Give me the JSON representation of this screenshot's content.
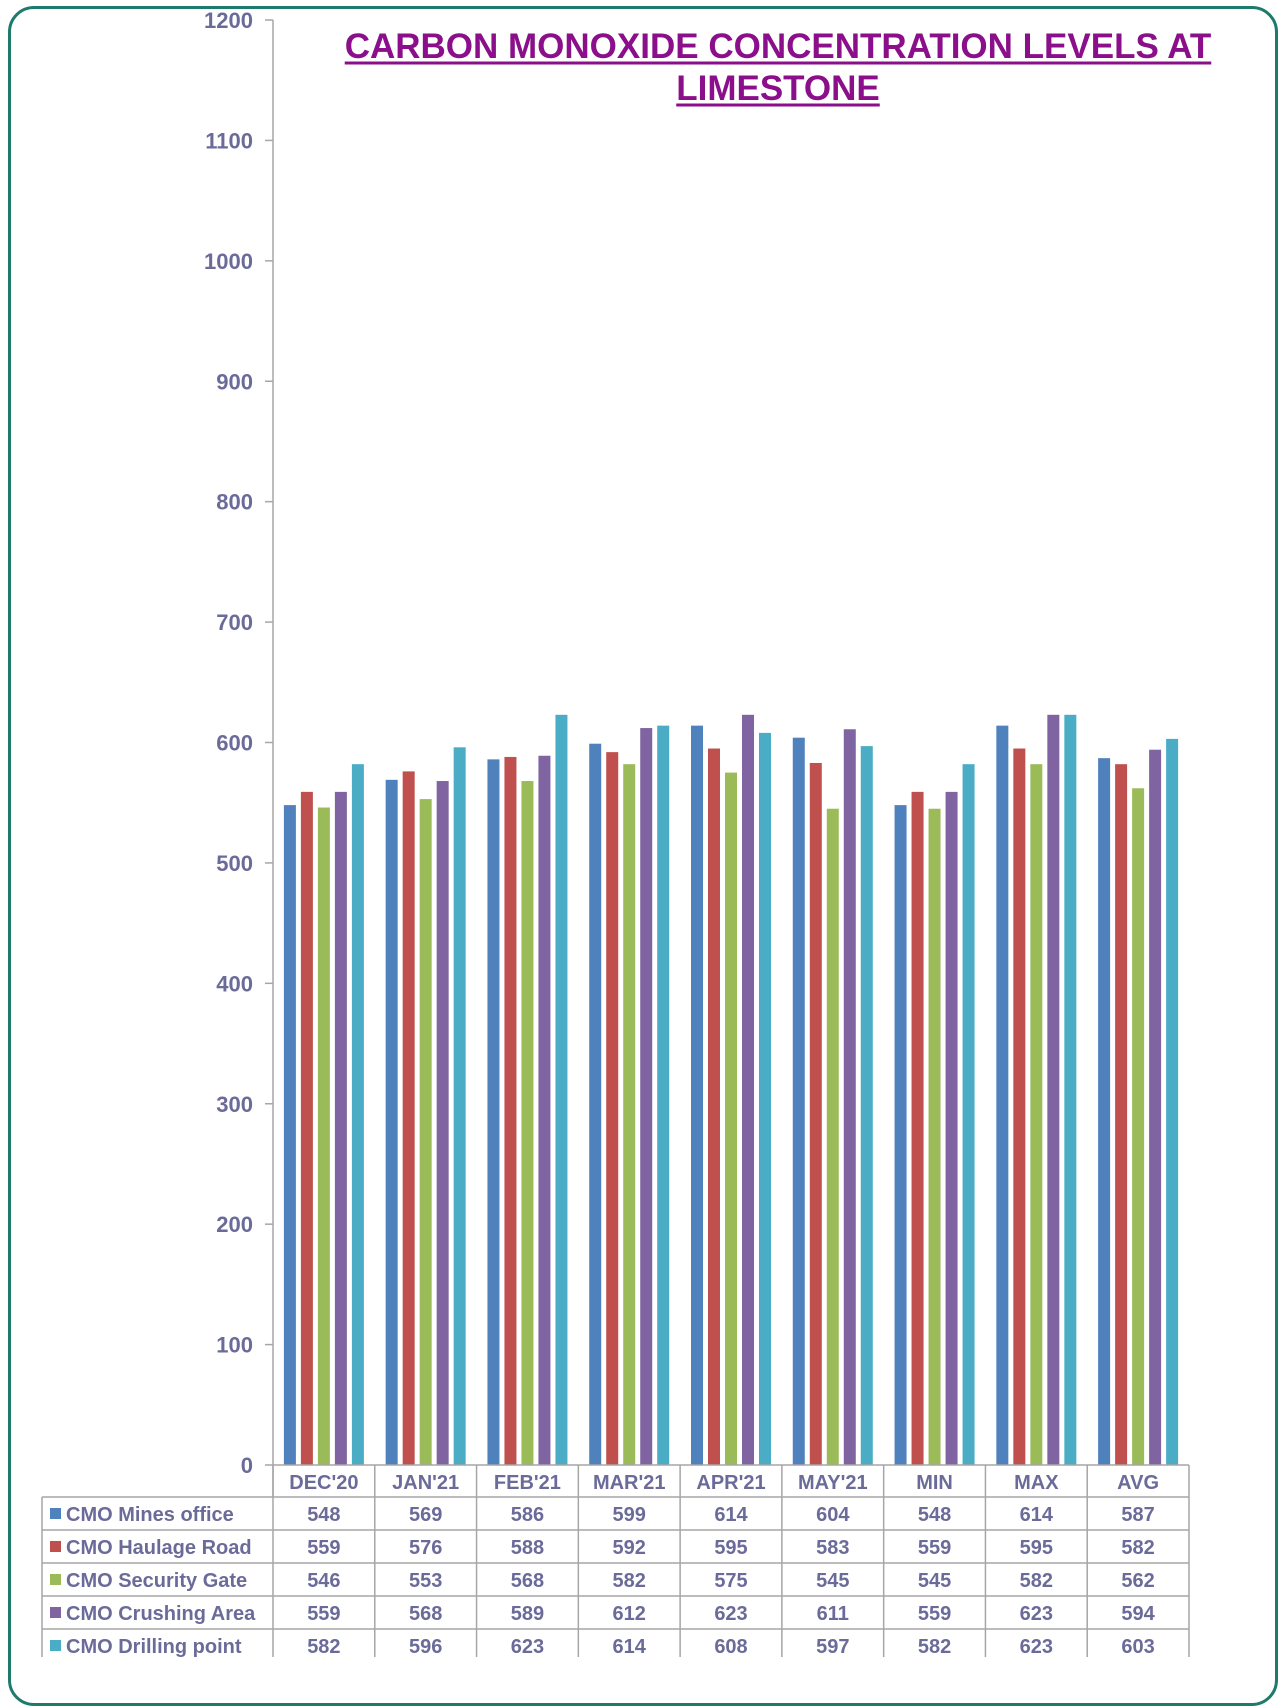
{
  "chart_data": {
    "type": "bar",
    "title_lines": [
      "CARBON MONOXIDE CONCENTRATION LEVELS AT",
      "LIMESTONE"
    ],
    "categories": [
      "DEC'20",
      "JAN'21",
      "FEB'21",
      "MAR'21",
      "APR'21",
      "MAY'21",
      "MIN",
      "MAX",
      "AVG"
    ],
    "ylim": [
      0,
      1200
    ],
    "yticks": [
      "0",
      "100",
      "200",
      "300",
      "400",
      "500",
      "600",
      "700",
      "800",
      "900",
      "1000",
      "1100",
      "1200"
    ],
    "grid": false,
    "legend": "data-table-below",
    "series": [
      {
        "name": "CMO Mines office",
        "color": "#4f81bd",
        "values": [
          548,
          569,
          586,
          599,
          614,
          604,
          548,
          614,
          587
        ]
      },
      {
        "name": "CMO Haulage Road",
        "color": "#c0504d",
        "values": [
          559,
          576,
          588,
          592,
          595,
          583,
          559,
          595,
          582
        ]
      },
      {
        "name": "CMO Security Gate",
        "color": "#9bbb59",
        "values": [
          546,
          553,
          568,
          582,
          575,
          545,
          545,
          582,
          562
        ]
      },
      {
        "name": "CMO Crushing Area",
        "color": "#8064a2",
        "values": [
          559,
          568,
          589,
          612,
          623,
          611,
          559,
          623,
          594
        ]
      },
      {
        "name": "CMO Drilling point",
        "color": "#4bacc6",
        "values": [
          582,
          596,
          623,
          614,
          608,
          597,
          582,
          623,
          603
        ]
      }
    ]
  }
}
